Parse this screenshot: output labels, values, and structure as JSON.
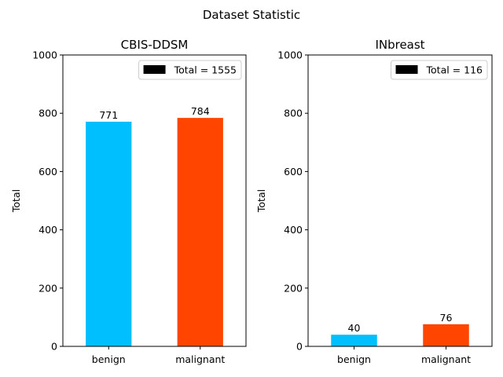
{
  "figure": {
    "suptitle": "Dataset Statistic"
  },
  "chart_data": [
    {
      "type": "bar",
      "title": "CBIS-DDSM",
      "categories": [
        "benign",
        "malignant"
      ],
      "values": [
        771,
        784
      ],
      "value_labels": [
        "771",
        "784"
      ],
      "colors": [
        "#00BFFF",
        "#FF4500"
      ],
      "xlabel": "",
      "ylabel": "Total",
      "ylim": [
        0,
        1000
      ],
      "yticks": [
        0,
        200,
        400,
        600,
        800,
        1000
      ],
      "ytick_labels": [
        "0",
        "200",
        "400",
        "600",
        "800",
        "1000"
      ],
      "legend": {
        "label": "Total = 1555",
        "color": "#000000",
        "placement": "top-right"
      },
      "grid": false
    },
    {
      "type": "bar",
      "title": "INbreast",
      "categories": [
        "benign",
        "malignant"
      ],
      "values": [
        40,
        76
      ],
      "value_labels": [
        "40",
        "76"
      ],
      "colors": [
        "#00BFFF",
        "#FF4500"
      ],
      "xlabel": "",
      "ylabel": "Total",
      "ylim": [
        0,
        1000
      ],
      "yticks": [
        0,
        200,
        400,
        600,
        800,
        1000
      ],
      "ytick_labels": [
        "0",
        "200",
        "400",
        "600",
        "800",
        "1000"
      ],
      "legend": {
        "label": "Total = 116",
        "color": "#000000",
        "placement": "top-right"
      },
      "grid": false
    }
  ]
}
